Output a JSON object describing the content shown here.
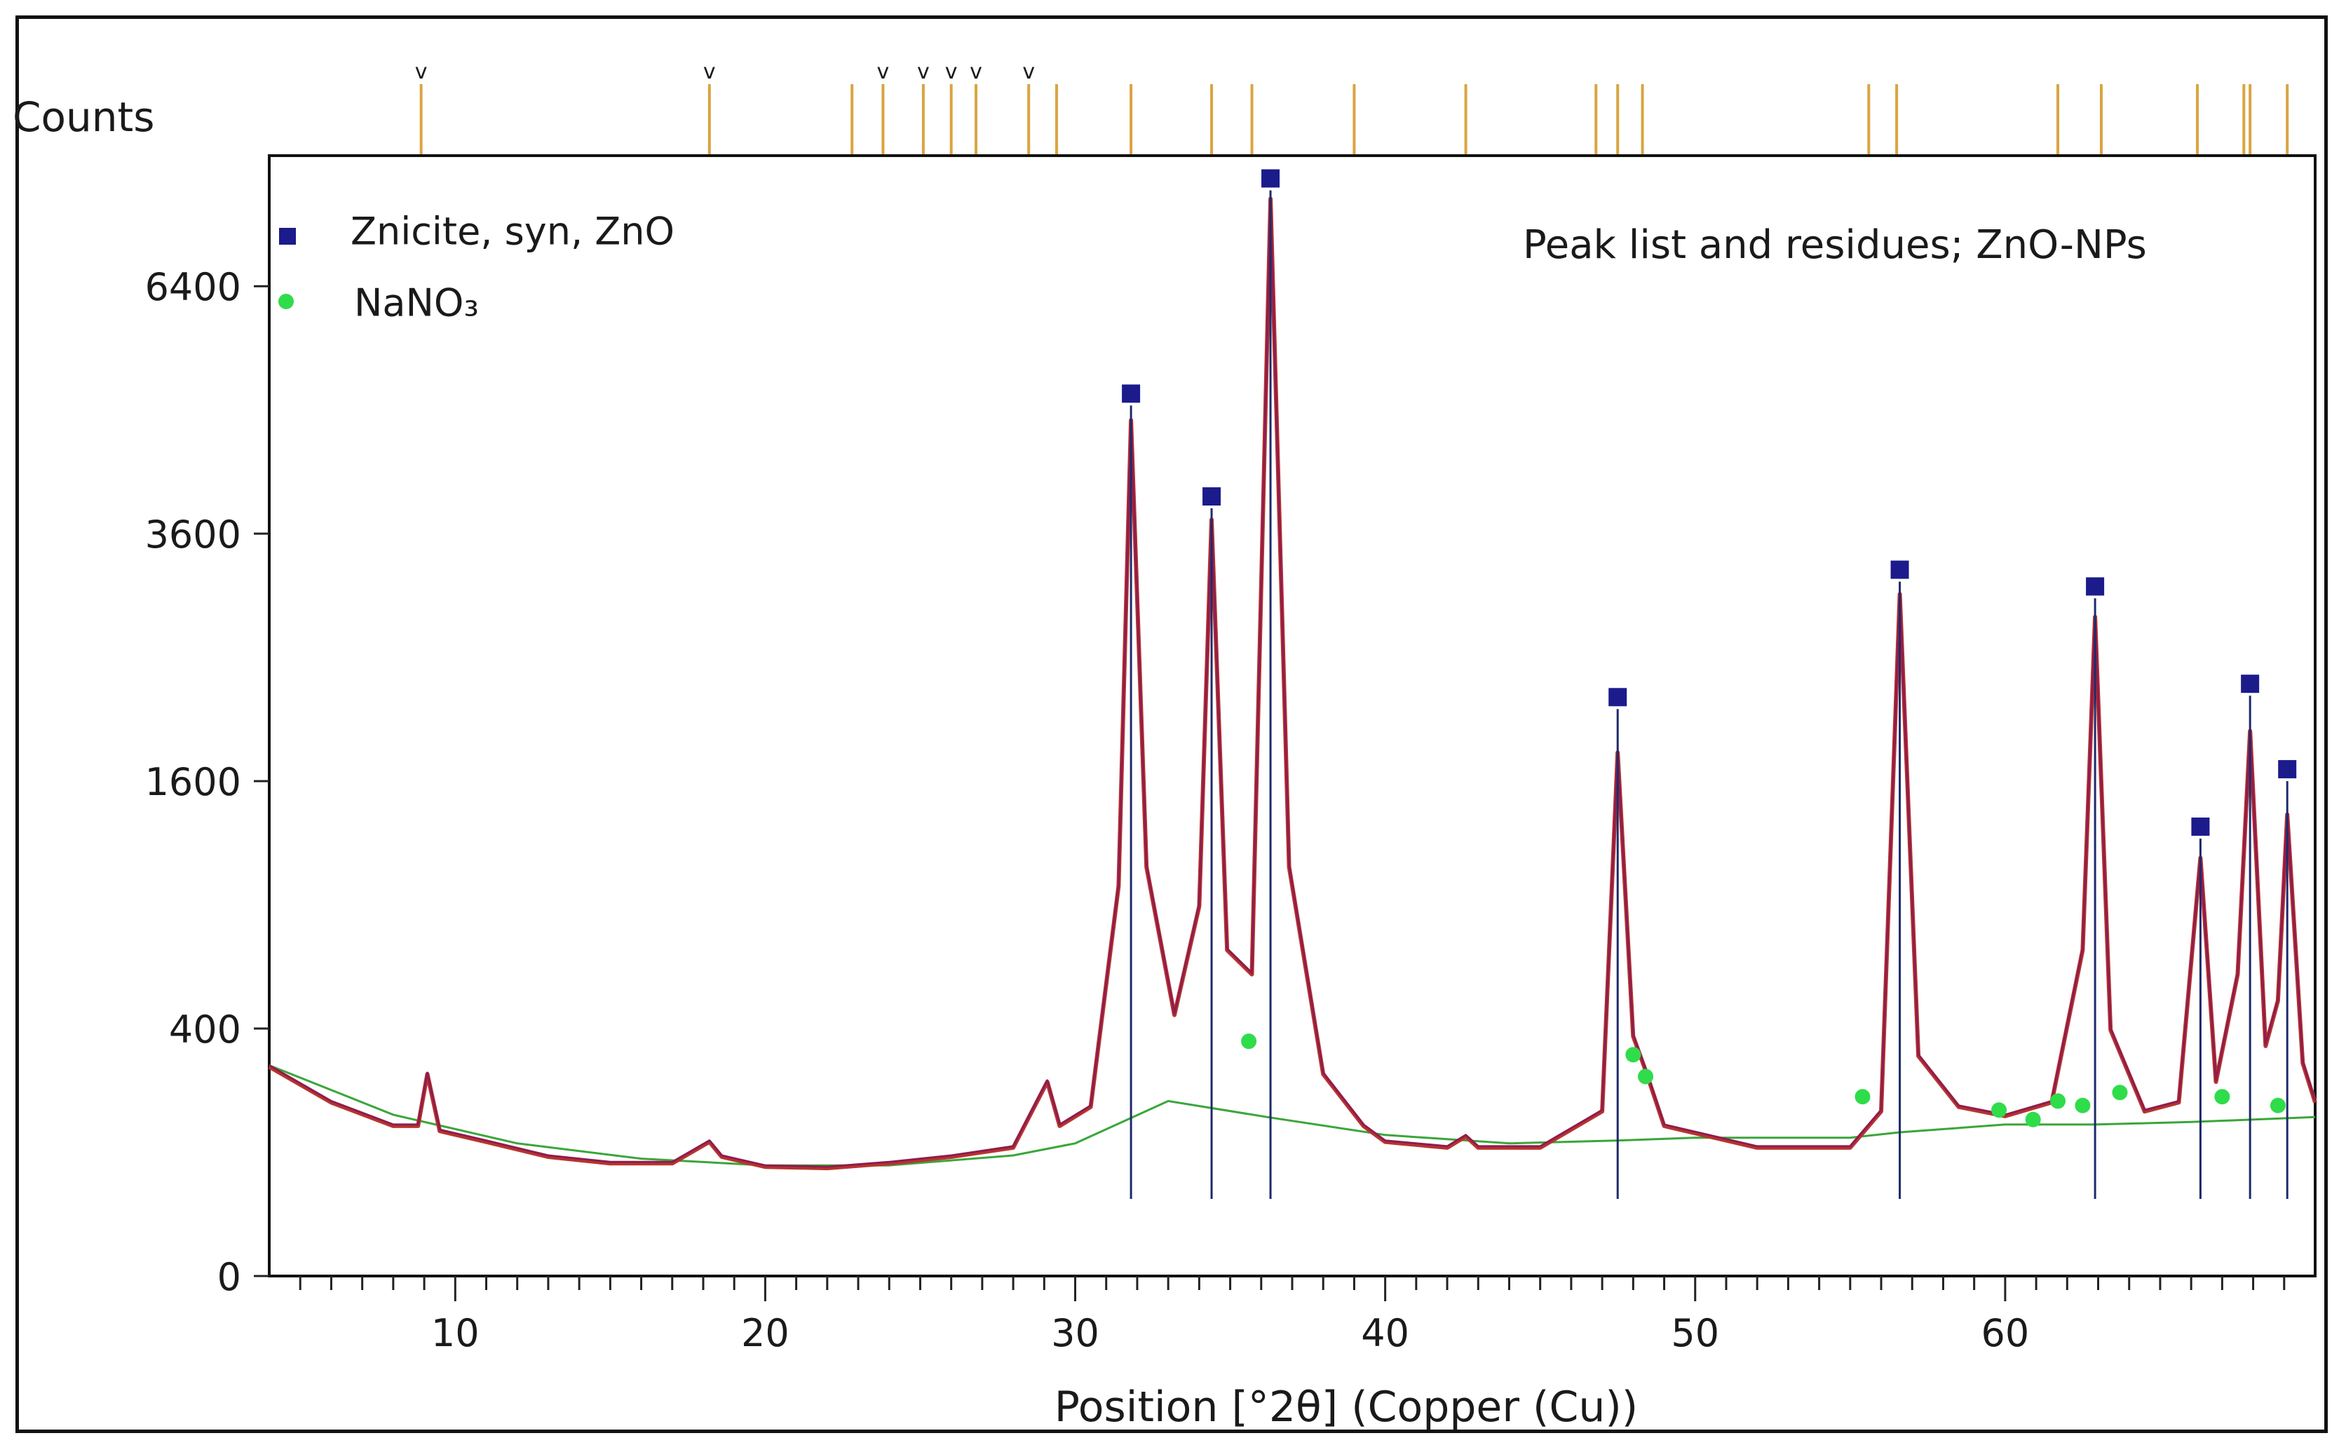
{
  "chart_data": {
    "type": "line",
    "title": "Peak list and residues; ZnO-NPs",
    "xlabel": "Position [°2θ] (Copper (Cu))",
    "ylabel": "Counts",
    "xlim": [
      4,
      70
    ],
    "x_ticks": [
      10,
      20,
      30,
      40,
      50,
      60
    ],
    "y_scale": "sqrt",
    "y_ticks": [
      0,
      400,
      1600,
      3600,
      6400
    ],
    "ylim": [
      0,
      8200
    ],
    "grid": false,
    "legend_position": "top-left",
    "colors": {
      "measured": "#b8342c",
      "calculated": "#8e1c50",
      "background": "#3aa63a",
      "zno": "#1b1b8c",
      "nano3": "#2fdc4a",
      "reference": "#d9a441",
      "sticks": "#1e2a6b"
    },
    "legend": [
      {
        "label": "Znicite, syn, ZnO",
        "marker": "square",
        "color": "#1b1b8c"
      },
      {
        "label": "NaNO₃",
        "marker": "circle",
        "color": "#2fdc4a"
      }
    ],
    "series": [
      {
        "name": "Znicite, syn, ZnO",
        "marker": "square",
        "x": [
          31.8,
          34.4,
          36.3,
          47.5,
          56.6,
          62.9,
          66.3,
          67.9,
          69.1
        ],
        "y": [
          4950,
          3850,
          7700,
          2100,
          3150,
          3000,
          1250,
          2200,
          1600
        ]
      },
      {
        "name": "NaNO₃",
        "marker": "circle",
        "x": [
          35.6,
          48.0,
          48.4,
          55.4,
          59.8,
          60.9,
          61.7,
          62.5,
          63.7,
          67.0,
          68.8
        ],
        "y": [
          360,
          320,
          260,
          210,
          180,
          160,
          200,
          190,
          220,
          210,
          190
        ]
      }
    ],
    "profile": {
      "x": [
        4,
        6,
        8,
        8.8,
        9.1,
        9.5,
        11,
        13,
        15,
        17,
        18.2,
        18.6,
        20,
        22,
        24,
        26,
        28,
        29.1,
        29.5,
        30.5,
        31.4,
        31.8,
        32.3,
        33.2,
        34.0,
        34.4,
        34.9,
        35.7,
        36.3,
        36.9,
        38,
        39.3,
        40,
        42,
        42.6,
        43,
        45,
        47.0,
        47.5,
        48.0,
        48.4,
        49,
        52,
        55,
        56.0,
        56.6,
        57.2,
        58.5,
        60,
        61.5,
        62.5,
        62.9,
        63.4,
        64.5,
        65.6,
        66.3,
        66.8,
        67.5,
        67.9,
        68.4,
        68.8,
        69.1,
        69.6,
        70
      ],
      "y": [
        290,
        200,
        150,
        150,
        270,
        140,
        120,
        95,
        85,
        85,
        120,
        95,
        80,
        78,
        85,
        95,
        110,
        250,
        150,
        190,
        1000,
        4800,
        1100,
        450,
        900,
        3750,
        700,
        600,
        7600,
        1100,
        270,
        150,
        120,
        110,
        130,
        110,
        110,
        180,
        1800,
        380,
        280,
        150,
        110,
        110,
        180,
        3050,
        320,
        190,
        170,
        200,
        700,
        2850,
        400,
        180,
        200,
        1150,
        250,
        600,
        1950,
        350,
        500,
        1400,
        300,
        200
      ]
    },
    "background_curve": {
      "x": [
        4,
        8,
        12,
        16,
        20,
        24,
        28,
        30,
        33,
        36.2,
        40,
        44,
        47.5,
        50,
        55,
        56.6,
        60,
        62.9,
        66,
        70
      ],
      "y": [
        290,
        170,
        115,
        90,
        80,
        80,
        95,
        115,
        200,
        165,
        130,
        115,
        120,
        125,
        125,
        135,
        150,
        150,
        155,
        165
      ]
    },
    "reference_lines": [
      8.9,
      18.2,
      22.8,
      23.8,
      25.1,
      26.0,
      26.8,
      28.5,
      29.4,
      31.8,
      34.4,
      35.7,
      39.0,
      42.6,
      46.8,
      47.5,
      48.3,
      55.6,
      56.5,
      61.7,
      63.1,
      66.2,
      67.7,
      67.9,
      69.1
    ],
    "reference_marks": [
      8.9,
      18.2,
      23.8,
      25.1,
      26.0,
      26.8,
      28.5
    ]
  },
  "ui": {
    "tick_mark": "v"
  }
}
